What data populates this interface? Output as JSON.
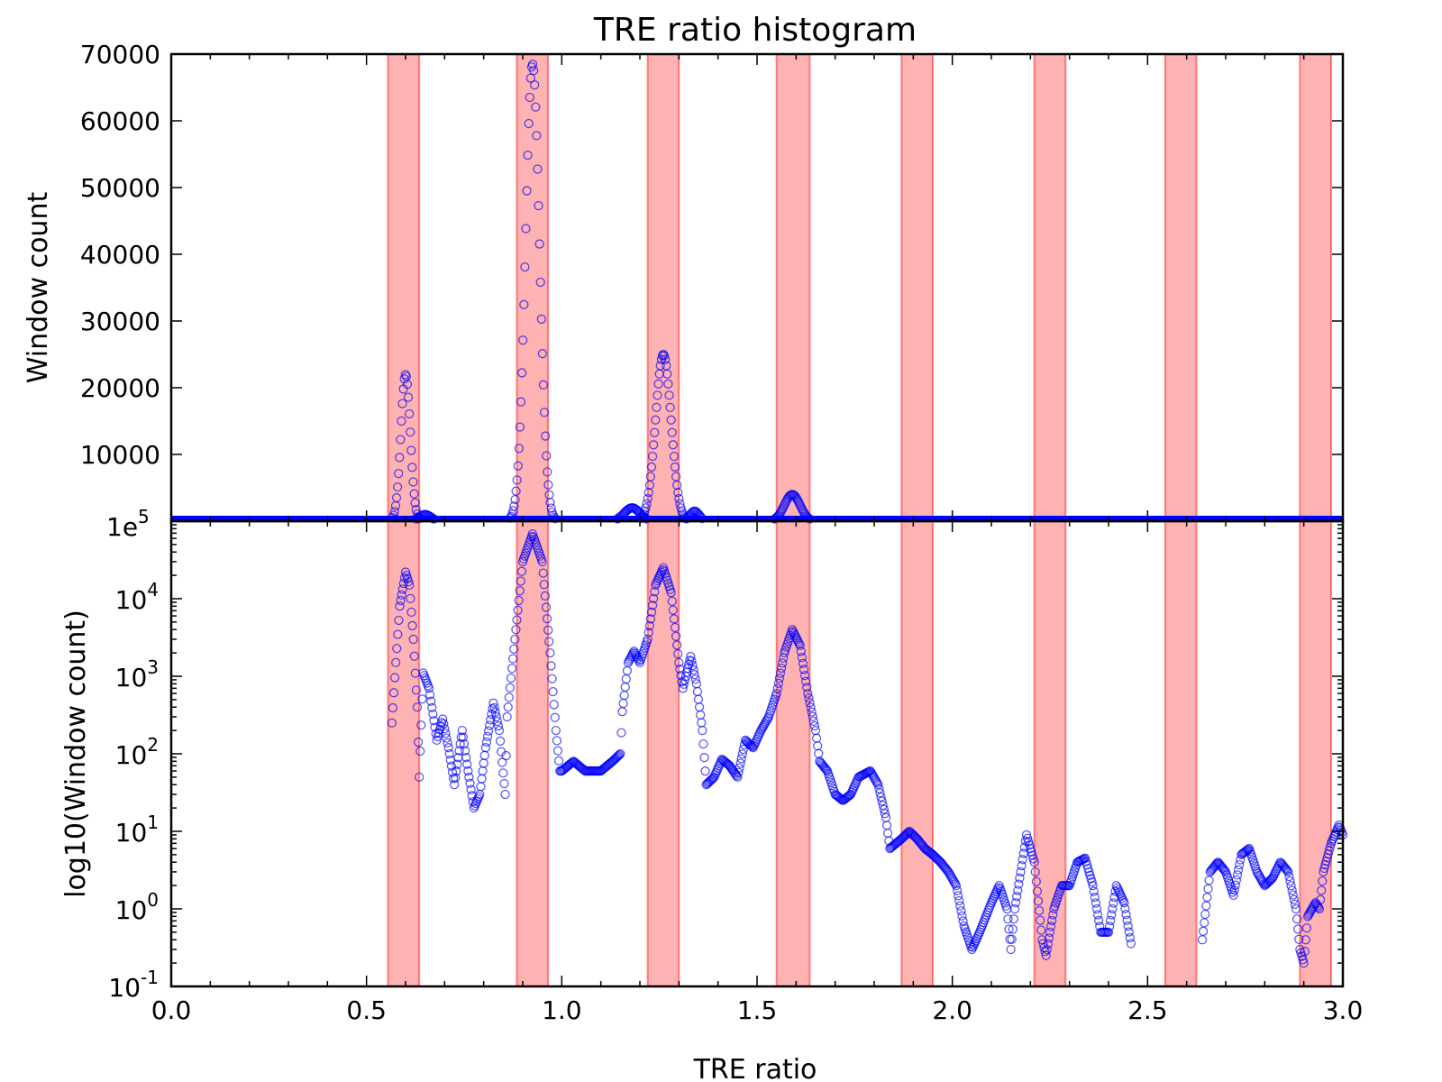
{
  "chart_data": [
    {
      "type": "scatter",
      "title": "TRE ratio histogram",
      "xlabel": "",
      "ylabel": "Window count",
      "xlim": [
        0.0,
        3.0
      ],
      "ylim": [
        0,
        70000
      ],
      "y_ticks": [
        "70000",
        "60000",
        "50000",
        "40000",
        "30000",
        "20000",
        "10000"
      ],
      "y_corner_label": {
        "base": "1e",
        "exp": "5"
      },
      "marker": "open-circle",
      "color": "#0000ff",
      "peaks": [
        {
          "x": 0.6,
          "y": 22000,
          "sigma": 0.012
        },
        {
          "x": 0.925,
          "y": 68500,
          "sigma": 0.018
        },
        {
          "x": 1.26,
          "y": 25000,
          "sigma": 0.02
        },
        {
          "x": 1.59,
          "y": 4000,
          "sigma": 0.02
        },
        {
          "x": 1.18,
          "y": 2000,
          "sigma": 0.02
        },
        {
          "x": 1.34,
          "y": 1500,
          "sigma": 0.012
        },
        {
          "x": 0.65,
          "y": 1000,
          "sigma": 0.015
        }
      ]
    },
    {
      "type": "scatter",
      "title": "",
      "xlabel": "TRE ratio",
      "ylabel": "log10(Window count)",
      "xlim": [
        0.0,
        3.0
      ],
      "ylim": [
        0.1,
        100000
      ],
      "yscale": "log",
      "y_ticks": [
        {
          "base": "10",
          "exp": "-1"
        },
        {
          "base": "10",
          "exp": "0"
        },
        {
          "base": "10",
          "exp": "1"
        },
        {
          "base": "10",
          "exp": "2"
        },
        {
          "base": "10",
          "exp": "3"
        },
        {
          "base": "10",
          "exp": "4"
        }
      ],
      "x_ticks": [
        "0.0",
        "0.5",
        "1.0",
        "1.5",
        "2.0",
        "2.5",
        "3.0"
      ],
      "marker": "open-circle",
      "color": "#0000ff",
      "curve": [
        [
          0.565,
          250
        ],
        [
          0.575,
          1500
        ],
        [
          0.585,
          8000
        ],
        [
          0.6,
          22000
        ],
        [
          0.61,
          15000
        ],
        [
          0.62,
          3000
        ],
        [
          0.63,
          400
        ],
        [
          0.635,
          50
        ],
        [
          0.645,
          1100
        ],
        [
          0.66,
          700
        ],
        [
          0.68,
          150
        ],
        [
          0.695,
          280
        ],
        [
          0.71,
          120
        ],
        [
          0.725,
          40
        ],
        [
          0.745,
          200
        ],
        [
          0.76,
          60
        ],
        [
          0.775,
          20
        ],
        [
          0.79,
          30
        ],
        [
          0.805,
          120
        ],
        [
          0.825,
          450
        ],
        [
          0.84,
          200
        ],
        [
          0.855,
          30
        ],
        [
          0.86,
          300
        ],
        [
          0.88,
          3000
        ],
        [
          0.9,
          30000
        ],
        [
          0.925,
          68500
        ],
        [
          0.95,
          30000
        ],
        [
          0.97,
          2000
        ],
        [
          0.985,
          200
        ],
        [
          0.995,
          60
        ],
        [
          1.0,
          60
        ],
        [
          1.03,
          80
        ],
        [
          1.06,
          60
        ],
        [
          1.1,
          60
        ],
        [
          1.13,
          80
        ],
        [
          1.15,
          100
        ],
        [
          1.155,
          350
        ],
        [
          1.17,
          1500
        ],
        [
          1.185,
          2100
        ],
        [
          1.2,
          1500
        ],
        [
          1.22,
          3000
        ],
        [
          1.24,
          15000
        ],
        [
          1.26,
          25000
        ],
        [
          1.28,
          12000
        ],
        [
          1.3,
          1500
        ],
        [
          1.31,
          700
        ],
        [
          1.33,
          1800
        ],
        [
          1.345,
          800
        ],
        [
          1.36,
          200
        ],
        [
          1.37,
          40
        ],
        [
          1.39,
          50
        ],
        [
          1.41,
          85
        ],
        [
          1.43,
          70
        ],
        [
          1.45,
          50
        ],
        [
          1.47,
          150
        ],
        [
          1.49,
          120
        ],
        [
          1.51,
          200
        ],
        [
          1.53,
          300
        ],
        [
          1.55,
          600
        ],
        [
          1.57,
          2000
        ],
        [
          1.59,
          4000
        ],
        [
          1.61,
          2500
        ],
        [
          1.63,
          600
        ],
        [
          1.65,
          200
        ],
        [
          1.66,
          80
        ],
        [
          1.68,
          60
        ],
        [
          1.7,
          30
        ],
        [
          1.72,
          25
        ],
        [
          1.74,
          30
        ],
        [
          1.76,
          50
        ],
        [
          1.79,
          60
        ],
        [
          1.81,
          40
        ],
        [
          1.83,
          15
        ],
        [
          1.84,
          6
        ],
        [
          1.87,
          8
        ],
        [
          1.89,
          10
        ],
        [
          1.91,
          8
        ],
        [
          1.93,
          6
        ],
        [
          1.95,
          5
        ],
        [
          1.97,
          4
        ],
        [
          1.99,
          3
        ],
        [
          2.01,
          2
        ],
        [
          2.03,
          0.6
        ],
        [
          2.05,
          0.3
        ],
        [
          2.07,
          0.5
        ],
        [
          2.1,
          1.2
        ],
        [
          2.12,
          2
        ],
        [
          2.14,
          1.0
        ],
        [
          2.15,
          0.3
        ],
        [
          2.16,
          1.0
        ],
        [
          2.19,
          9
        ],
        [
          2.21,
          4
        ],
        [
          2.23,
          0.4
        ],
        [
          2.24,
          0.25
        ],
        [
          2.26,
          1.0
        ],
        [
          2.28,
          2
        ],
        [
          2.3,
          2
        ],
        [
          2.32,
          4
        ],
        [
          2.34,
          4.5
        ],
        [
          2.36,
          2
        ],
        [
          2.38,
          0.5
        ],
        [
          2.4,
          0.5
        ],
        [
          2.42,
          2
        ],
        [
          2.44,
          1.2
        ],
        [
          2.46,
          0.3
        ],
        [
          2.64,
          0.4
        ],
        [
          2.66,
          3
        ],
        [
          2.68,
          4
        ],
        [
          2.7,
          3
        ],
        [
          2.72,
          1.5
        ],
        [
          2.74,
          5
        ],
        [
          2.76,
          6
        ],
        [
          2.78,
          3
        ],
        [
          2.8,
          2
        ],
        [
          2.82,
          2.5
        ],
        [
          2.84,
          4
        ],
        [
          2.86,
          3
        ],
        [
          2.88,
          1.0
        ],
        [
          2.89,
          0.3
        ],
        [
          2.9,
          0.2
        ],
        [
          2.91,
          0.8
        ],
        [
          2.93,
          1.2
        ],
        [
          2.94,
          1.0
        ],
        [
          2.95,
          3
        ],
        [
          2.97,
          7
        ],
        [
          2.99,
          12
        ],
        [
          3.0,
          9
        ]
      ]
    }
  ],
  "bands": [
    [
      0.555,
      0.635
    ],
    [
      0.885,
      0.965
    ],
    [
      1.22,
      1.3
    ],
    [
      1.55,
      1.635
    ],
    [
      1.87,
      1.95
    ],
    [
      2.21,
      2.29
    ],
    [
      2.545,
      2.625
    ],
    [
      2.89,
      2.97
    ]
  ],
  "band_color": "#ff0000",
  "series_color": "#0000ff"
}
